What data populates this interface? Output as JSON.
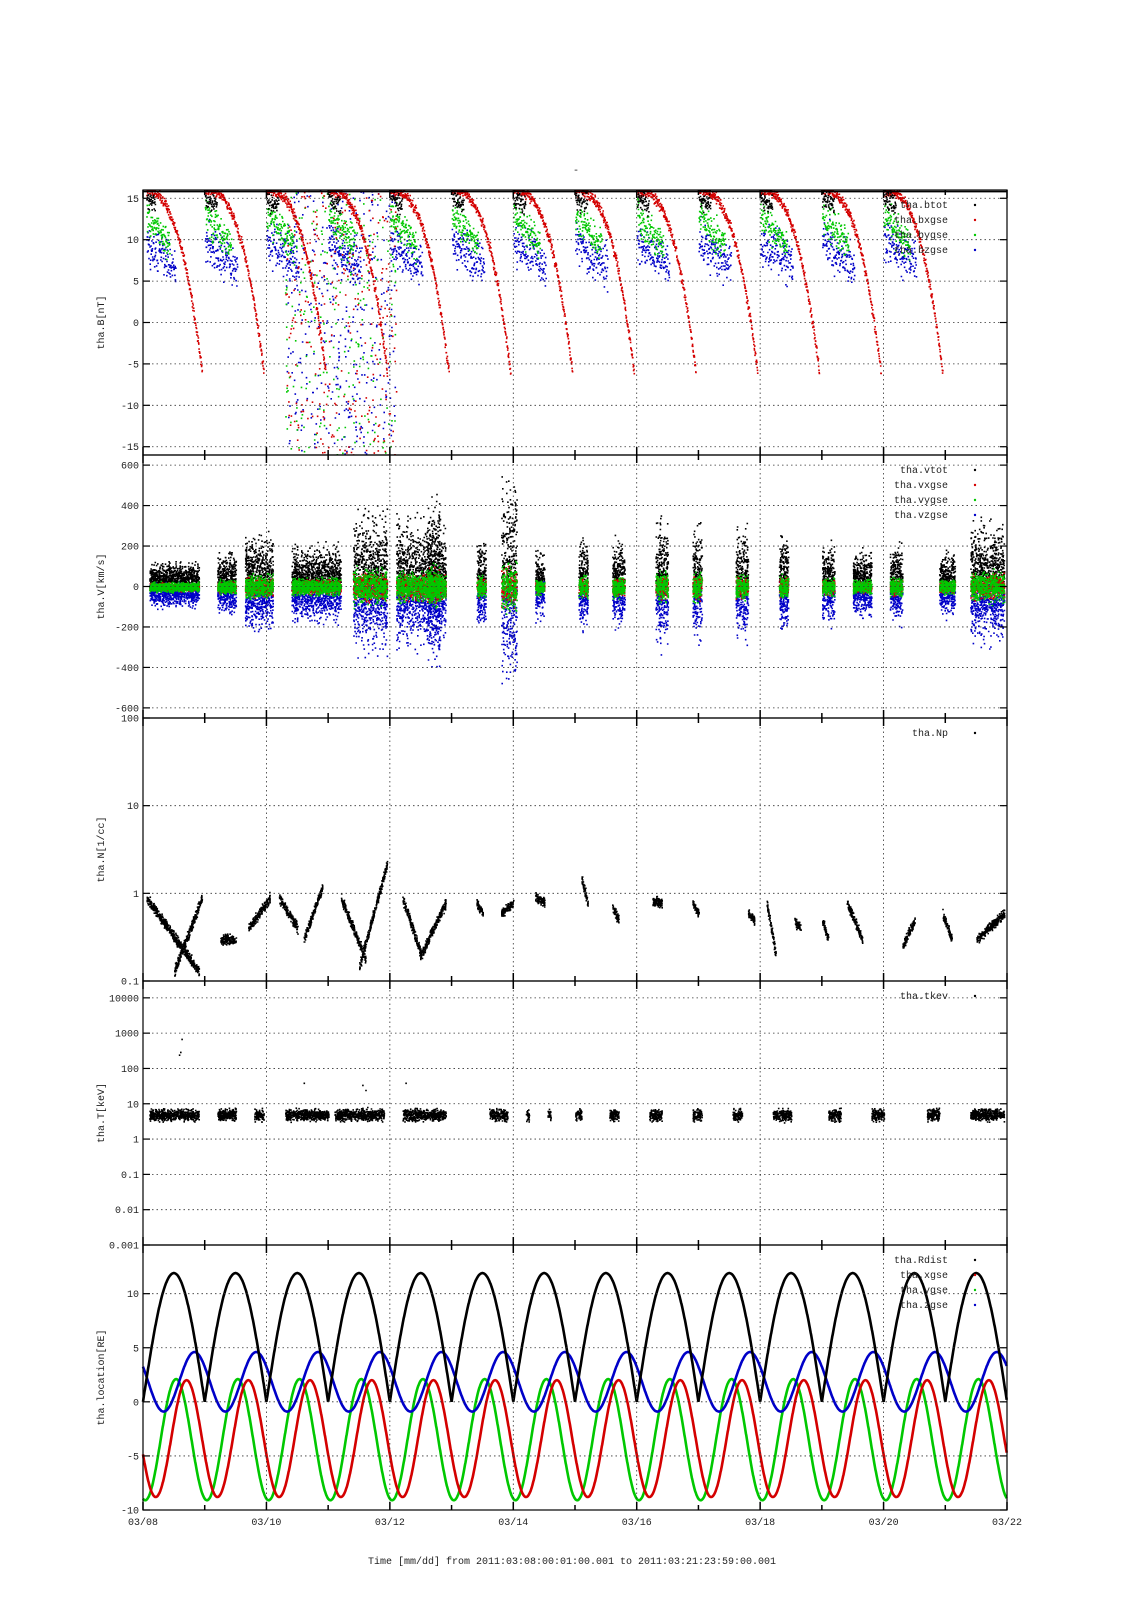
{
  "figure": {
    "title": "-",
    "xlabel": "Time [mm/dd]  from 2011:03:08:00:01:00.001  to  2011:03:21:23:59:00.001"
  },
  "colors": {
    "black": "#000000",
    "red": "#d40000",
    "green": "#00c800",
    "blue": "#0000c8",
    "grid": "#333333"
  },
  "chart_data": [
    {
      "type": "scatter",
      "ylabel": "tha.B[nT]",
      "ylim": [
        -16,
        16
      ],
      "yscale": "linear",
      "yticks": [
        -15,
        -10,
        -5,
        0,
        5,
        10,
        15
      ],
      "ytick_labels": [
        "-15",
        "-10",
        "-5",
        "0",
        "5",
        "10",
        "15"
      ],
      "xlim": [
        "03/08",
        "03/22"
      ],
      "grid": true,
      "legend_position": "top-right",
      "series": [
        {
          "name": "tha.btot",
          "color": "black"
        },
        {
          "name": "tha.bxgse",
          "color": "red"
        },
        {
          "name": "tha.bygse",
          "color": "green"
        },
        {
          "name": "tha.bzgse",
          "color": "blue"
        }
      ]
    },
    {
      "type": "scatter",
      "ylabel": "tha.V[km/s]",
      "ylim": [
        -650,
        650
      ],
      "yscale": "linear",
      "yticks": [
        -600,
        -400,
        -200,
        0,
        200,
        400,
        600
      ],
      "ytick_labels": [
        "-600",
        "-400",
        "-200",
        "0",
        "200",
        "400",
        "600"
      ],
      "xlim": [
        "03/08",
        "03/22"
      ],
      "grid": true,
      "legend_position": "top-right",
      "series": [
        {
          "name": "tha.vtot",
          "color": "black"
        },
        {
          "name": "tha.vxgse",
          "color": "red"
        },
        {
          "name": "tha.vygse",
          "color": "green"
        },
        {
          "name": "tha.vzgse",
          "color": "blue"
        }
      ]
    },
    {
      "type": "scatter",
      "ylabel": "tha.N[1/cc]",
      "ylim": [
        0.1,
        100
      ],
      "yscale": "log",
      "yticks": [
        0.1,
        1,
        10,
        100
      ],
      "ytick_labels": [
        "0.1",
        "1",
        "10",
        "100"
      ],
      "xlim": [
        "03/08",
        "03/22"
      ],
      "grid": true,
      "legend_position": "top-right",
      "series": [
        {
          "name": "tha.Np",
          "color": "black"
        }
      ]
    },
    {
      "type": "scatter",
      "ylabel": "tha.T[keV]",
      "ylim": [
        0.001,
        30000
      ],
      "yscale": "log",
      "yticks": [
        0.001,
        0.01,
        0.1,
        1,
        10,
        100,
        1000,
        10000
      ],
      "ytick_labels": [
        "0.001",
        "0.01",
        "0.1",
        "1",
        "10",
        "100",
        "1000",
        "10000"
      ],
      "xlim": [
        "03/08",
        "03/22"
      ],
      "grid": true,
      "legend_position": "top-right",
      "series": [
        {
          "name": "tha.tkev",
          "color": "black"
        }
      ]
    },
    {
      "type": "line",
      "ylabel": "tha.location[RE]",
      "ylim": [
        -10,
        14.5
      ],
      "yscale": "linear",
      "yticks": [
        -10,
        -5,
        0,
        5,
        10
      ],
      "ytick_labels": [
        "-10",
        "-5",
        "0",
        "5",
        "10"
      ],
      "xlim": [
        "03/08",
        "03/22"
      ],
      "xticks": [
        "03/08",
        "03/10",
        "03/12",
        "03/14",
        "03/16",
        "03/18",
        "03/20",
        "03/22"
      ],
      "grid": true,
      "legend_position": "top-right",
      "series": [
        {
          "name": "tha.Rdist",
          "color": "black",
          "min": 0,
          "max": 11.9
        },
        {
          "name": "tha.xgse",
          "color": "red",
          "min": -8.8,
          "max": 2.0
        },
        {
          "name": "tha.ygse",
          "color": "green",
          "min": -9.1,
          "max": 2.0
        },
        {
          "name": "tha.zgse",
          "color": "blue",
          "min": -0.9,
          "max": 4.6
        }
      ]
    }
  ]
}
